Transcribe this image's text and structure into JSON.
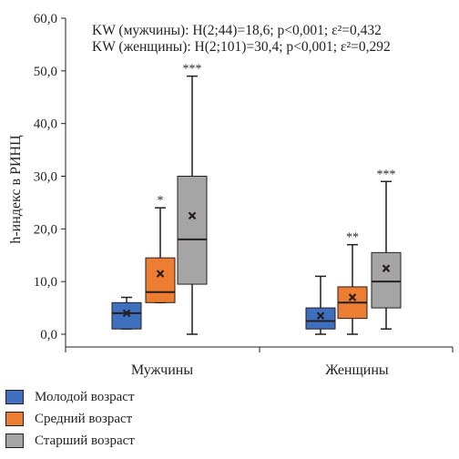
{
  "chart_data": {
    "type": "boxplot",
    "ylabel": "h-индекс в РИНЦ",
    "ylim": [
      0,
      60
    ],
    "yticks": [
      "0,0",
      "10,0",
      "20,0",
      "30,0",
      "40,0",
      "50,0",
      "60,0"
    ],
    "categories": [
      "Мужчины",
      "Женщины"
    ],
    "annotations": [
      "KW (мужчины): H(2;44)=18,6; p<0,001; ε²=0,432",
      "KW (женщины): H(2;101)=30,4; p<0,001; ε²=0,292"
    ],
    "series": [
      {
        "name": "Молодой возраст",
        "color": "#3f6fbf",
        "boxes": [
          {
            "category": "Мужчины",
            "min": 1,
            "q1": 1,
            "median": 4,
            "q3": 6,
            "max": 7,
            "mean": 4,
            "sig": ""
          },
          {
            "category": "Женщины",
            "min": 0,
            "q1": 1,
            "median": 2.5,
            "q3": 5,
            "max": 11,
            "mean": 3.5,
            "sig": ""
          }
        ]
      },
      {
        "name": "Средний возраст",
        "color": "#ed7d31",
        "boxes": [
          {
            "category": "Мужчины",
            "min": 6,
            "q1": 6,
            "median": 8,
            "q3": 14.5,
            "max": 24,
            "mean": 11.5,
            "sig": "*"
          },
          {
            "category": "Женщины",
            "min": 0,
            "q1": 3,
            "median": 6,
            "q3": 9,
            "max": 17,
            "mean": 7,
            "sig": "**"
          }
        ]
      },
      {
        "name": "Старший возраст",
        "color": "#a5a5a5",
        "boxes": [
          {
            "category": "Мужчины",
            "min": 0,
            "q1": 9.5,
            "median": 18,
            "q3": 30,
            "max": 49,
            "mean": 22.5,
            "sig": "***"
          },
          {
            "category": "Женщины",
            "min": 1,
            "q1": 5,
            "median": 10,
            "q3": 15.5,
            "max": 29,
            "mean": 12.5,
            "sig": "***"
          }
        ]
      }
    ]
  }
}
